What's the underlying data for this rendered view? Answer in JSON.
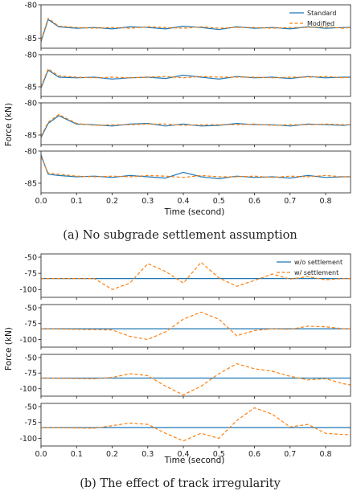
{
  "chart_data": [
    {
      "type": "line",
      "caption": "(a) No subgrade settlement assumption",
      "xlabel": "Time (second)",
      "ylabel": "Force (kN)",
      "xlim": [
        0,
        0.87
      ],
      "x_ticks": [
        "0.0",
        "0.1",
        "0.2",
        "0.3",
        "0.4",
        "0.5",
        "0.6",
        "0.7",
        "0.8"
      ],
      "legend": {
        "position": "top-right",
        "entries": [
          "Standard",
          "Modified"
        ]
      },
      "colors": {
        "Standard": "#1f77b4",
        "Modified": "#ff7f0e"
      },
      "x": [
        0.0,
        0.02,
        0.05,
        0.1,
        0.15,
        0.2,
        0.25,
        0.3,
        0.35,
        0.4,
        0.45,
        0.5,
        0.55,
        0.6,
        0.65,
        0.7,
        0.75,
        0.8,
        0.85,
        0.87
      ],
      "panels": [
        {
          "ylim": [
            -86.5,
            -80
          ],
          "y_ticks": [
            "-80",
            "-85"
          ],
          "series": [
            {
              "name": "Standard",
              "values": [
                -85.5,
                -82.2,
                -83.3,
                -83.5,
                -83.4,
                -83.6,
                -83.3,
                -83.4,
                -83.6,
                -83.2,
                -83.4,
                -83.7,
                -83.3,
                -83.5,
                -83.4,
                -83.6,
                -83.3,
                -83.5,
                -83.4,
                -83.4
              ]
            },
            {
              "name": "Modified",
              "values": [
                -85.3,
                -82.0,
                -83.2,
                -83.4,
                -83.5,
                -83.4,
                -83.5,
                -83.3,
                -83.4,
                -83.5,
                -83.3,
                -83.5,
                -83.4,
                -83.4,
                -83.5,
                -83.4,
                -83.4,
                -83.3,
                -83.5,
                -83.4
              ]
            }
          ]
        },
        {
          "ylim": [
            -86.5,
            -80
          ],
          "y_ticks": [
            "-80",
            "-85"
          ],
          "series": [
            {
              "name": "Standard",
              "values": [
                -85.2,
                -82.4,
                -83.5,
                -83.6,
                -83.5,
                -83.8,
                -83.6,
                -83.5,
                -83.7,
                -83.2,
                -83.5,
                -83.8,
                -83.4,
                -83.6,
                -83.5,
                -83.7,
                -83.4,
                -83.6,
                -83.5,
                -83.5
              ]
            },
            {
              "name": "Modified",
              "values": [
                -85.0,
                -82.2,
                -83.3,
                -83.5,
                -83.6,
                -83.5,
                -83.6,
                -83.5,
                -83.4,
                -83.6,
                -83.4,
                -83.5,
                -83.5,
                -83.5,
                -83.6,
                -83.5,
                -83.5,
                -83.4,
                -83.6,
                -83.5
              ]
            }
          ]
        },
        {
          "ylim": [
            -86.5,
            -80
          ],
          "y_ticks": [
            "-80",
            "-85"
          ],
          "series": [
            {
              "name": "Standard",
              "values": [
                -85.4,
                -83.2,
                -82.0,
                -83.3,
                -83.4,
                -83.6,
                -83.3,
                -83.2,
                -83.6,
                -83.3,
                -83.6,
                -83.5,
                -83.2,
                -83.4,
                -83.4,
                -83.6,
                -83.3,
                -83.4,
                -83.5,
                -83.4
              ]
            },
            {
              "name": "Modified",
              "values": [
                -85.2,
                -83.0,
                -81.8,
                -83.2,
                -83.5,
                -83.4,
                -83.4,
                -83.3,
                -83.3,
                -83.5,
                -83.4,
                -83.4,
                -83.4,
                -83.3,
                -83.5,
                -83.4,
                -83.4,
                -83.3,
                -83.4,
                -83.4
              ]
            }
          ]
        },
        {
          "ylim": [
            -86.5,
            -80
          ],
          "y_ticks": [
            "-80",
            "-85"
          ],
          "series": [
            {
              "name": "Standard",
              "values": [
                -80.6,
                -83.6,
                -83.8,
                -84.0,
                -83.9,
                -84.1,
                -83.8,
                -84.0,
                -84.2,
                -83.3,
                -84.0,
                -84.3,
                -83.9,
                -84.1,
                -84.0,
                -84.2,
                -83.8,
                -84.1,
                -84.0,
                -84.0
              ]
            },
            {
              "name": "Modified",
              "values": [
                -80.9,
                -83.4,
                -83.6,
                -83.9,
                -84.0,
                -83.9,
                -84.0,
                -83.8,
                -83.9,
                -84.1,
                -83.8,
                -84.0,
                -84.0,
                -83.9,
                -84.1,
                -83.9,
                -84.0,
                -83.8,
                -84.0,
                -84.0
              ]
            }
          ]
        }
      ]
    },
    {
      "type": "line",
      "caption": "(b) The effect of track irregularity",
      "xlabel": "Time (second)",
      "ylabel": "Force (kN)",
      "xlim": [
        0,
        0.87
      ],
      "x_ticks": [
        "0.0",
        "0.1",
        "0.2",
        "0.3",
        "0.4",
        "0.5",
        "0.6",
        "0.7",
        "0.8"
      ],
      "legend": {
        "position": "top-right",
        "entries": [
          "w/o settlement",
          "w/ settlement"
        ]
      },
      "colors": {
        "w/o settlement": "#1f77b4",
        "w/ settlement": "#ff7f0e"
      },
      "panels": [
        {
          "ylim": [
            -112,
            -45
          ],
          "y_ticks": [
            "-50",
            "-75",
            "-100"
          ],
          "series": [
            {
              "name": "w/o settlement",
              "x": [
                0.0,
                0.87
              ],
              "values": [
                -83,
                -83
              ]
            },
            {
              "name": "w/ settlement",
              "x": [
                0.0,
                0.15,
                0.2,
                0.25,
                0.3,
                0.35,
                0.4,
                0.45,
                0.5,
                0.55,
                0.6,
                0.65,
                0.7,
                0.75,
                0.8,
                0.85,
                0.87
              ],
              "values": [
                -83,
                -83,
                -100,
                -90,
                -60,
                -72,
                -90,
                -58,
                -82,
                -95,
                -86,
                -76,
                -84,
                -80,
                -85,
                -83,
                -83
              ]
            }
          ]
        },
        {
          "ylim": [
            -112,
            -45
          ],
          "y_ticks": [
            "-50",
            "-75",
            "-100"
          ],
          "series": [
            {
              "name": "w/o settlement",
              "x": [
                0.0,
                0.87
              ],
              "values": [
                -83,
                -83
              ]
            },
            {
              "name": "w/ settlement",
              "x": [
                0.0,
                0.2,
                0.25,
                0.3,
                0.35,
                0.4,
                0.45,
                0.5,
                0.55,
                0.6,
                0.65,
                0.7,
                0.75,
                0.8,
                0.85,
                0.87
              ],
              "values": [
                -83,
                -85,
                -95,
                -100,
                -88,
                -68,
                -57,
                -68,
                -94,
                -86,
                -83,
                -84,
                -79,
                -80,
                -83,
                -83
              ]
            }
          ]
        },
        {
          "ylim": [
            -112,
            -45
          ],
          "y_ticks": [
            "-50",
            "-75",
            "-100"
          ],
          "series": [
            {
              "name": "w/o settlement",
              "x": [
                0.0,
                0.87
              ],
              "values": [
                -83,
                -83
              ]
            },
            {
              "name": "w/ settlement",
              "x": [
                0.0,
                0.15,
                0.2,
                0.25,
                0.3,
                0.35,
                0.4,
                0.45,
                0.5,
                0.55,
                0.6,
                0.65,
                0.7,
                0.75,
                0.8,
                0.85,
                0.87
              ],
              "values": [
                -83,
                -84,
                -82,
                -76,
                -79,
                -96,
                -110,
                -96,
                -76,
                -60,
                -68,
                -72,
                -80,
                -86,
                -84,
                -92,
                -94
              ]
            }
          ]
        },
        {
          "ylim": [
            -112,
            -45
          ],
          "y_ticks": [
            "-50",
            "-75",
            "-100"
          ],
          "series": [
            {
              "name": "w/o settlement",
              "x": [
                0.0,
                0.87
              ],
              "values": [
                -83,
                -83
              ]
            },
            {
              "name": "w/ settlement",
              "x": [
                0.0,
                0.15,
                0.2,
                0.25,
                0.3,
                0.35,
                0.4,
                0.45,
                0.5,
                0.55,
                0.6,
                0.65,
                0.7,
                0.75,
                0.8,
                0.85,
                0.87
              ],
              "values": [
                -83,
                -84,
                -80,
                -76,
                -78,
                -92,
                -104,
                -92,
                -100,
                -72,
                -52,
                -62,
                -82,
                -78,
                -92,
                -94,
                -94
              ]
            }
          ]
        }
      ]
    }
  ]
}
